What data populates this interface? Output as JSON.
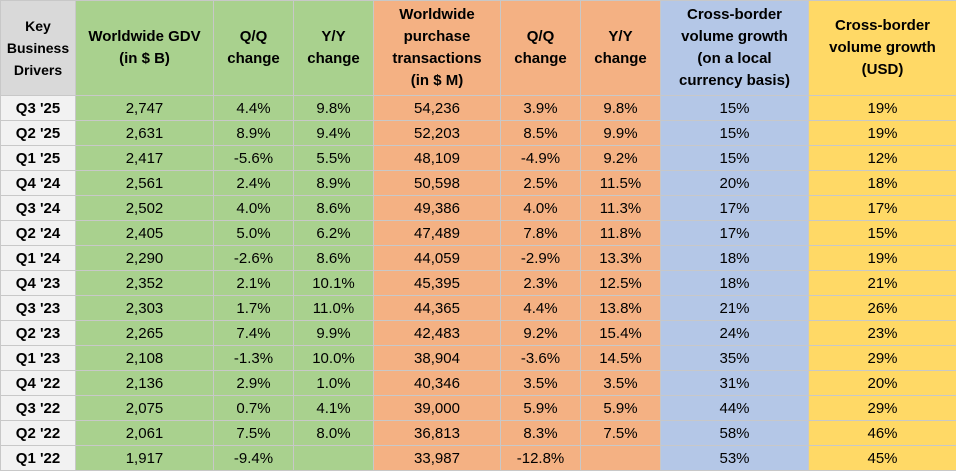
{
  "table": {
    "headers": [
      [
        "Key",
        "Business",
        "Drivers"
      ],
      [
        "Worldwide GDV",
        "(in $ B)"
      ],
      [
        "Q/Q",
        "change"
      ],
      [
        "Y/Y",
        "change"
      ],
      [
        "Worldwide",
        "purchase",
        "transactions",
        "(in $ M)"
      ],
      [
        "Q/Q",
        "change"
      ],
      [
        "Y/Y",
        "change"
      ],
      [
        "Cross-border",
        "volume growth",
        "(on a local",
        "currency basis)"
      ],
      [
        "Cross-border",
        "volume growth",
        "(USD)"
      ]
    ],
    "rows": [
      [
        "Q3 '25",
        "2,747",
        "4.4%",
        "9.8%",
        "54,236",
        "3.9%",
        "9.8%",
        "15%",
        "19%"
      ],
      [
        "Q2 '25",
        "2,631",
        "8.9%",
        "9.4%",
        "52,203",
        "8.5%",
        "9.9%",
        "15%",
        "19%"
      ],
      [
        "Q1 '25",
        "2,417",
        "-5.6%",
        "5.5%",
        "48,109",
        "-4.9%",
        "9.2%",
        "15%",
        "12%"
      ],
      [
        "Q4 '24",
        "2,561",
        "2.4%",
        "8.9%",
        "50,598",
        "2.5%",
        "11.5%",
        "20%",
        "18%"
      ],
      [
        "Q3 '24",
        "2,502",
        "4.0%",
        "8.6%",
        "49,386",
        "4.0%",
        "11.3%",
        "17%",
        "17%"
      ],
      [
        "Q2 '24",
        "2,405",
        "5.0%",
        "6.2%",
        "47,489",
        "7.8%",
        "11.8%",
        "17%",
        "15%"
      ],
      [
        "Q1 '24",
        "2,290",
        "-2.6%",
        "8.6%",
        "44,059",
        "-2.9%",
        "13.3%",
        "18%",
        "19%"
      ],
      [
        "Q4 '23",
        "2,352",
        "2.1%",
        "10.1%",
        "45,395",
        "2.3%",
        "12.5%",
        "18%",
        "21%"
      ],
      [
        "Q3 '23",
        "2,303",
        "1.7%",
        "11.0%",
        "44,365",
        "4.4%",
        "13.8%",
        "21%",
        "26%"
      ],
      [
        "Q2 '23",
        "2,265",
        "7.4%",
        "9.9%",
        "42,483",
        "9.2%",
        "15.4%",
        "24%",
        "23%"
      ],
      [
        "Q1 '23",
        "2,108",
        "-1.3%",
        "10.0%",
        "38,904",
        "-3.6%",
        "14.5%",
        "35%",
        "29%"
      ],
      [
        "Q4 '22",
        "2,136",
        "2.9%",
        "1.0%",
        "40,346",
        "3.5%",
        "3.5%",
        "31%",
        "20%"
      ],
      [
        "Q3 '22",
        "2,075",
        "0.7%",
        "4.1%",
        "39,000",
        "5.9%",
        "5.9%",
        "44%",
        "29%"
      ],
      [
        "Q2 '22",
        "2,061",
        "7.5%",
        "8.0%",
        "36,813",
        "8.3%",
        "7.5%",
        "58%",
        "46%"
      ],
      [
        "Q1 '22",
        "1,917",
        "-9.4%",
        null,
        "33,987",
        "-12.8%",
        null,
        "53%",
        "45%"
      ]
    ]
  }
}
